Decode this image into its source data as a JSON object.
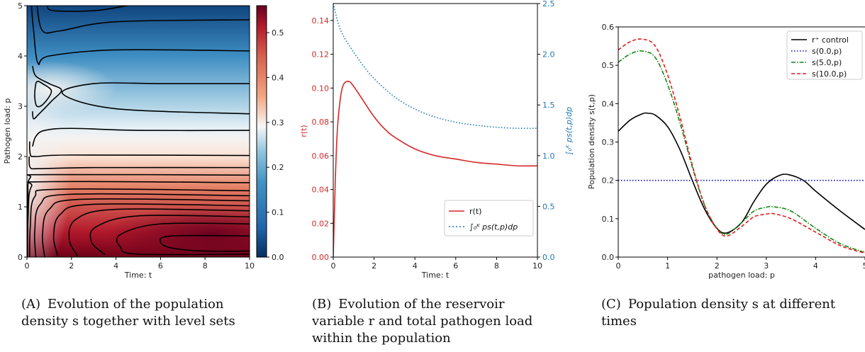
{
  "chart_data": [
    {
      "id": "A",
      "type": "heatmap",
      "xlabel": "Time: t",
      "ylabel": "Pathogen load: p",
      "xlim": [
        0,
        10
      ],
      "ylim": [
        0,
        5
      ],
      "xticks": [
        0,
        2,
        4,
        6,
        8,
        10
      ],
      "yticks": [
        0,
        1,
        2,
        3,
        4,
        5
      ],
      "colorbar": {
        "min": 0.0,
        "max": 0.56,
        "ticks": [
          0.0,
          0.1,
          0.2,
          0.3,
          0.4,
          0.5
        ],
        "colormap": "RdBu_r"
      },
      "contour_levels": [
        0.05,
        0.1,
        0.15,
        0.2,
        0.25,
        0.3,
        0.35,
        0.4,
        0.45,
        0.5,
        0.55
      ],
      "description_values": {
        "low_p_peak": 0.56,
        "mid_p_value": 0.2,
        "high_p_value": 0.03
      }
    },
    {
      "id": "B",
      "type": "line",
      "xlabel": "Time: t",
      "ylabel_left": "r(t)",
      "ylabel_right": "∫₀ᴷ ps(t,p)dp",
      "xlim": [
        0,
        10
      ],
      "ylim_left": [
        0,
        0.15
      ],
      "ylim_right": [
        0,
        2.5
      ],
      "xticks": [
        0,
        2,
        4,
        6,
        8,
        10
      ],
      "yticks_left": [
        0.0,
        0.02,
        0.04,
        0.06,
        0.08,
        0.1,
        0.12,
        0.14
      ],
      "yticks_right": [
        0.0,
        0.5,
        1.0,
        1.5,
        2.0,
        2.5
      ],
      "series": [
        {
          "name": "r(t)",
          "axis": "left",
          "color": "#d62728",
          "style": "solid",
          "x": [
            0,
            0.1,
            0.2,
            0.35,
            0.5,
            0.75,
            1.0,
            1.5,
            2,
            2.5,
            3,
            4,
            5,
            6,
            7,
            8,
            9,
            10
          ],
          "y": [
            0.0,
            0.045,
            0.075,
            0.094,
            0.102,
            0.104,
            0.101,
            0.092,
            0.083,
            0.076,
            0.071,
            0.064,
            0.06,
            0.058,
            0.056,
            0.055,
            0.054,
            0.054
          ]
        },
        {
          "name": "∫₀ᴷ ps(t,p)dp",
          "axis": "right",
          "color": "#1f77b4",
          "style": "dotted",
          "x": [
            0,
            0.25,
            0.5,
            1,
            1.5,
            2,
            3,
            4,
            5,
            6,
            7,
            8,
            9,
            10
          ],
          "y": [
            2.5,
            2.3,
            2.18,
            2.02,
            1.88,
            1.76,
            1.58,
            1.46,
            1.38,
            1.33,
            1.3,
            1.28,
            1.27,
            1.27
          ]
        }
      ],
      "legend_position": "lower-right"
    },
    {
      "id": "C",
      "type": "line",
      "xlabel": "pathogen load: p",
      "ylabel": "Population density s(t,p)",
      "xlim": [
        0,
        5
      ],
      "ylim": [
        0,
        0.6
      ],
      "xticks": [
        0,
        1,
        2,
        3,
        4,
        5
      ],
      "yticks": [
        0.0,
        0.1,
        0.2,
        0.3,
        0.4,
        0.5,
        0.6
      ],
      "series": [
        {
          "name": "r⁺ control",
          "color": "#000000",
          "style": "solid",
          "x": [
            0,
            0.25,
            0.5,
            0.6,
            0.75,
            1.0,
            1.25,
            1.5,
            1.75,
            2.0,
            2.2,
            2.5,
            2.75,
            3.0,
            3.25,
            3.45,
            3.75,
            4.0,
            4.5,
            5.0
          ],
          "y": [
            0.328,
            0.358,
            0.374,
            0.375,
            0.37,
            0.34,
            0.28,
            0.2,
            0.125,
            0.075,
            0.063,
            0.09,
            0.145,
            0.19,
            0.212,
            0.215,
            0.2,
            0.172,
            0.12,
            0.072
          ]
        },
        {
          "name": "s(0.0,p)",
          "color": "#0000cc",
          "style": "dotted",
          "x": [
            0,
            5
          ],
          "y": [
            0.2,
            0.2
          ]
        },
        {
          "name": "s(5.0,p)",
          "color": "#118811",
          "style": "dashdot",
          "x": [
            0,
            0.25,
            0.5,
            0.75,
            1.0,
            1.25,
            1.5,
            1.75,
            2.0,
            2.2,
            2.5,
            2.75,
            3.0,
            3.15,
            3.5,
            4.0,
            4.5,
            5.0
          ],
          "y": [
            0.508,
            0.53,
            0.537,
            0.52,
            0.45,
            0.35,
            0.235,
            0.135,
            0.075,
            0.06,
            0.09,
            0.12,
            0.13,
            0.131,
            0.12,
            0.075,
            0.035,
            0.012
          ]
        },
        {
          "name": "s(10.0,p)",
          "color": "#e31a1c",
          "style": "dashed",
          "x": [
            0,
            0.25,
            0.5,
            0.75,
            1.0,
            1.25,
            1.5,
            1.75,
            2.0,
            2.2,
            2.5,
            2.75,
            3.0,
            3.15,
            3.5,
            4.0,
            4.5,
            5.0
          ],
          "y": [
            0.54,
            0.562,
            0.568,
            0.55,
            0.475,
            0.365,
            0.24,
            0.135,
            0.073,
            0.055,
            0.08,
            0.105,
            0.112,
            0.113,
            0.1,
            0.065,
            0.03,
            0.01
          ]
        }
      ],
      "legend_position": "top-right"
    }
  ],
  "captions": {
    "a_tag": "(A)",
    "a_text": "Evolution of the population density s together with level sets",
    "b_tag": "(B)",
    "b_text": "Evolution of the reservoir variable r and total pathogen load within the population",
    "c_tag": "(C)",
    "c_text": "Population density s at different times"
  }
}
